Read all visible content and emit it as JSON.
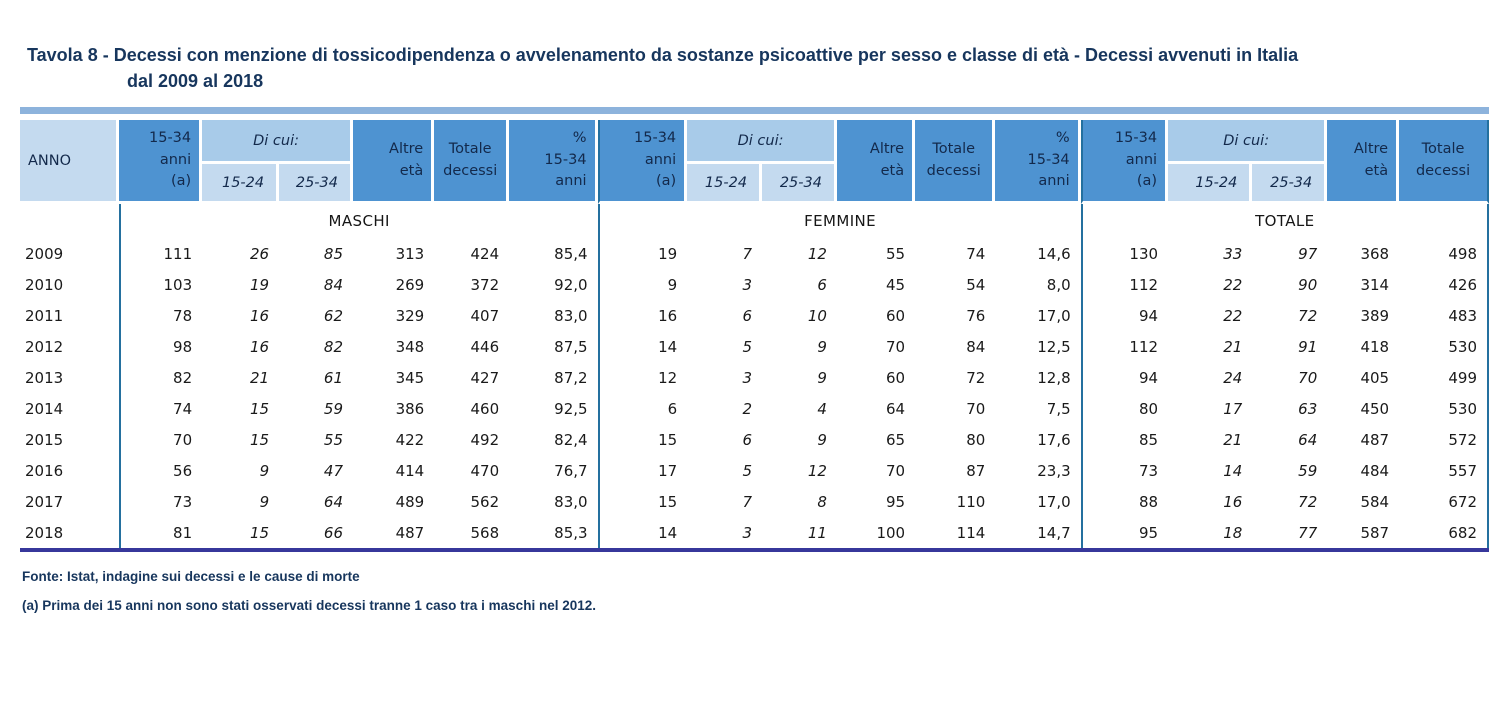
{
  "title": {
    "line1": "Tavola 8 - Decessi con menzione di tossicodipendenza o avvelenamento da sostanze psicoattive per sesso e classe di età - Decessi avvenuti in Italia",
    "line2": "dal 2009 al 2018"
  },
  "headers": {
    "anno": "ANNO",
    "age_15_34": "15-34\nanni\n(a)",
    "di_cui": "Di cui:",
    "age_15_24": "15-24",
    "age_25_34": "25-34",
    "altre_eta": "Altre\netà",
    "totale_decessi": "Totale\ndecessi",
    "pct_15_34": "%\n15-34\nanni"
  },
  "sections": {
    "male": "MASCHI",
    "female": "FEMMINE",
    "total": "TOTALE"
  },
  "rows": [
    {
      "anno": "2009",
      "m": [
        "111",
        "26",
        "85",
        "313",
        "424",
        "85,4"
      ],
      "f": [
        "19",
        "7",
        "12",
        "55",
        "74",
        "14,6"
      ],
      "t": [
        "130",
        "33",
        "97",
        "368",
        "498"
      ]
    },
    {
      "anno": "2010",
      "m": [
        "103",
        "19",
        "84",
        "269",
        "372",
        "92,0"
      ],
      "f": [
        "9",
        "3",
        "6",
        "45",
        "54",
        "8,0"
      ],
      "t": [
        "112",
        "22",
        "90",
        "314",
        "426"
      ]
    },
    {
      "anno": "2011",
      "m": [
        "78",
        "16",
        "62",
        "329",
        "407",
        "83,0"
      ],
      "f": [
        "16",
        "6",
        "10",
        "60",
        "76",
        "17,0"
      ],
      "t": [
        "94",
        "22",
        "72",
        "389",
        "483"
      ]
    },
    {
      "anno": "2012",
      "m": [
        "98",
        "16",
        "82",
        "348",
        "446",
        "87,5"
      ],
      "f": [
        "14",
        "5",
        "9",
        "70",
        "84",
        "12,5"
      ],
      "t": [
        "112",
        "21",
        "91",
        "418",
        "530"
      ]
    },
    {
      "anno": "2013",
      "m": [
        "82",
        "21",
        "61",
        "345",
        "427",
        "87,2"
      ],
      "f": [
        "12",
        "3",
        "9",
        "60",
        "72",
        "12,8"
      ],
      "t": [
        "94",
        "24",
        "70",
        "405",
        "499"
      ]
    },
    {
      "anno": "2014",
      "m": [
        "74",
        "15",
        "59",
        "386",
        "460",
        "92,5"
      ],
      "f": [
        "6",
        "2",
        "4",
        "64",
        "70",
        "7,5"
      ],
      "t": [
        "80",
        "17",
        "63",
        "450",
        "530"
      ]
    },
    {
      "anno": "2015",
      "m": [
        "70",
        "15",
        "55",
        "422",
        "492",
        "82,4"
      ],
      "f": [
        "15",
        "6",
        "9",
        "65",
        "80",
        "17,6"
      ],
      "t": [
        "85",
        "21",
        "64",
        "487",
        "572"
      ]
    },
    {
      "anno": "2016",
      "m": [
        "56",
        "9",
        "47",
        "414",
        "470",
        "76,7"
      ],
      "f": [
        "17",
        "5",
        "12",
        "70",
        "87",
        "23,3"
      ],
      "t": [
        "73",
        "14",
        "59",
        "484",
        "557"
      ]
    },
    {
      "anno": "2017",
      "m": [
        "73",
        "9",
        "64",
        "489",
        "562",
        "83,0"
      ],
      "f": [
        "15",
        "7",
        "8",
        "95",
        "110",
        "17,0"
      ],
      "t": [
        "88",
        "16",
        "72",
        "584",
        "672"
      ]
    },
    {
      "anno": "2018",
      "m": [
        "81",
        "15",
        "66",
        "487",
        "568",
        "85,3"
      ],
      "f": [
        "14",
        "3",
        "11",
        "100",
        "114",
        "14,7"
      ],
      "t": [
        "95",
        "18",
        "77",
        "587",
        "682"
      ]
    }
  ],
  "footer": {
    "fonte": "Fonte: Istat, indagine sui decessi e le cause di morte",
    "nota": "(a) Prima dei 15 anni non sono stati osservati decessi tranne 1 caso tra i maschi nel 2012."
  },
  "colors": {
    "header_medium_blue": "#4E93D1",
    "header_light_blue": "#C4DAEF",
    "header_band_blue": "#A8CBE9",
    "top_bar_blue": "#8DB3DC",
    "section_line_teal": "#24709F",
    "bottom_border_indigo": "#37379B",
    "title_navy": "#17365D"
  }
}
